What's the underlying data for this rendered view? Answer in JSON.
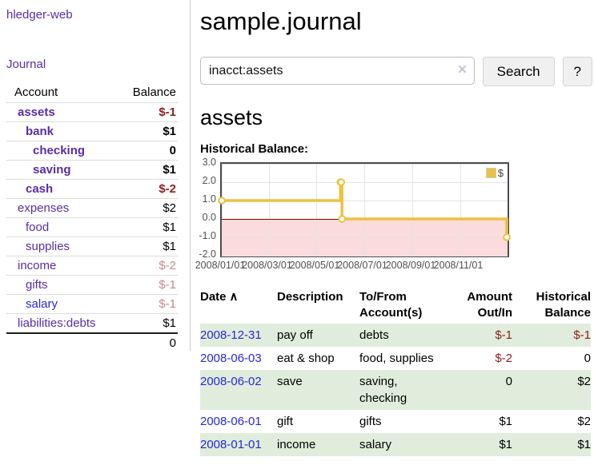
{
  "app": {
    "brand": "hledger-web",
    "nav_journal": "Journal"
  },
  "header": {
    "title": "sample.journal"
  },
  "search": {
    "value": "inacct:assets",
    "clear_icon": "✕",
    "button_label": "Search",
    "help_label": "?"
  },
  "sidebar": {
    "col_account": "Account",
    "col_balance": "Balance",
    "accounts": [
      {
        "name": "assets",
        "depth": 1,
        "bold": true,
        "link": "purple",
        "balance": "$-1",
        "bstyle": "neg"
      },
      {
        "name": "bank",
        "depth": 2,
        "bold": true,
        "link": "purple",
        "balance": "$1",
        "bstyle": "pos"
      },
      {
        "name": "checking",
        "depth": 3,
        "bold": true,
        "link": "purple",
        "balance": "0",
        "bstyle": "pos"
      },
      {
        "name": "saving",
        "depth": 3,
        "bold": true,
        "link": "purple",
        "balance": "$1",
        "bstyle": "pos"
      },
      {
        "name": "cash",
        "depth": 2,
        "bold": true,
        "link": "purple",
        "balance": "$-2",
        "bstyle": "neg"
      },
      {
        "name": "expenses",
        "depth": 1,
        "bold": false,
        "link": "purple",
        "balance": "$2",
        "bstyle": "pos"
      },
      {
        "name": "food",
        "depth": 2,
        "bold": false,
        "link": "purple",
        "balance": "$1",
        "bstyle": "pos"
      },
      {
        "name": "supplies",
        "depth": 2,
        "bold": false,
        "link": "purple",
        "balance": "$1",
        "bstyle": "pos"
      },
      {
        "name": "income",
        "depth": 1,
        "bold": false,
        "link": "purple",
        "balance": "$-2",
        "bstyle": "negmuted"
      },
      {
        "name": "gifts",
        "depth": 2,
        "bold": false,
        "link": "purple",
        "balance": "$-1",
        "bstyle": "negmuted"
      },
      {
        "name": "salary",
        "depth": 2,
        "bold": false,
        "link": "blue",
        "balance": "$-1",
        "bstyle": "negmuted"
      },
      {
        "name": "liabilities:debts",
        "depth": 1,
        "bold": false,
        "link": "purple",
        "balance": "$1",
        "bstyle": "pos"
      }
    ],
    "total": "0"
  },
  "register": {
    "heading": "assets",
    "chart_label": "Historical Balance:",
    "sort_indicator": "∧",
    "columns": [
      {
        "label": "Date",
        "align": "left"
      },
      {
        "label": "Description",
        "align": "left"
      },
      {
        "label": "To/From Account(s)",
        "align": "left"
      },
      {
        "label": "Amount Out/In",
        "align": "right"
      },
      {
        "label": "Historical Balance",
        "align": "right"
      }
    ],
    "rows": [
      {
        "date": "2008-12-31",
        "description": "pay off",
        "accounts": "debts",
        "amount": "$-1",
        "amount_neg": true,
        "balance": "$-1",
        "balance_neg": true,
        "green": true
      },
      {
        "date": "2008-06-03",
        "description": "eat & shop",
        "accounts": "food, supplies",
        "amount": "$-2",
        "amount_neg": true,
        "balance": "0",
        "balance_neg": false,
        "green": false
      },
      {
        "date": "2008-06-02",
        "description": "save",
        "accounts": "saving, checking",
        "amount": "0",
        "amount_neg": false,
        "balance": "$2",
        "balance_neg": false,
        "green": true
      },
      {
        "date": "2008-06-01",
        "description": "gift",
        "accounts": "gifts",
        "amount": "$1",
        "amount_neg": false,
        "balance": "$2",
        "balance_neg": false,
        "green": false
      },
      {
        "date": "2008-01-01",
        "description": "income",
        "accounts": "salary",
        "amount": "$1",
        "amount_neg": false,
        "balance": "$1",
        "balance_neg": false,
        "green": true
      }
    ]
  },
  "chart_data": {
    "type": "line",
    "step": true,
    "title": "Historical Balance:",
    "series": [
      {
        "name": "$",
        "color": "#edc240",
        "points": [
          [
            "2008-01-01",
            1
          ],
          [
            "2008-06-01",
            2
          ],
          [
            "2008-06-02",
            2
          ],
          [
            "2008-06-03",
            0
          ],
          [
            "2008-12-31",
            -1
          ]
        ]
      }
    ],
    "x_range": [
      "2008-01-01",
      "2009-01-01"
    ],
    "ylim": [
      -2.0,
      3.0
    ],
    "yticks": [
      3.0,
      2.0,
      1.0,
      0.0,
      -1.0,
      -2.0
    ],
    "xticks": [
      "2008-01-01",
      "2008-03-01",
      "2008-05-01",
      "2008-07-01",
      "2008-09-01",
      "2008-11-01"
    ],
    "xtick_labels": [
      "2008/01/01",
      "2008/03/01",
      "2008/05/01",
      "2008/07/01",
      "2008/09/01",
      "2008/11/01"
    ],
    "grid": true,
    "negative_region_fill": "#fbdbdb",
    "zero_line_color": "#8b0000",
    "legend": {
      "label": "$",
      "position": "top-right"
    }
  },
  "colors": {
    "link_purple": "#5a2ca6",
    "link_blue": "#2727d8",
    "negative": "#8f1d1d",
    "negative_muted": "#c8888c",
    "row_green": "#e0eddc",
    "chart_gold": "#edc240"
  }
}
